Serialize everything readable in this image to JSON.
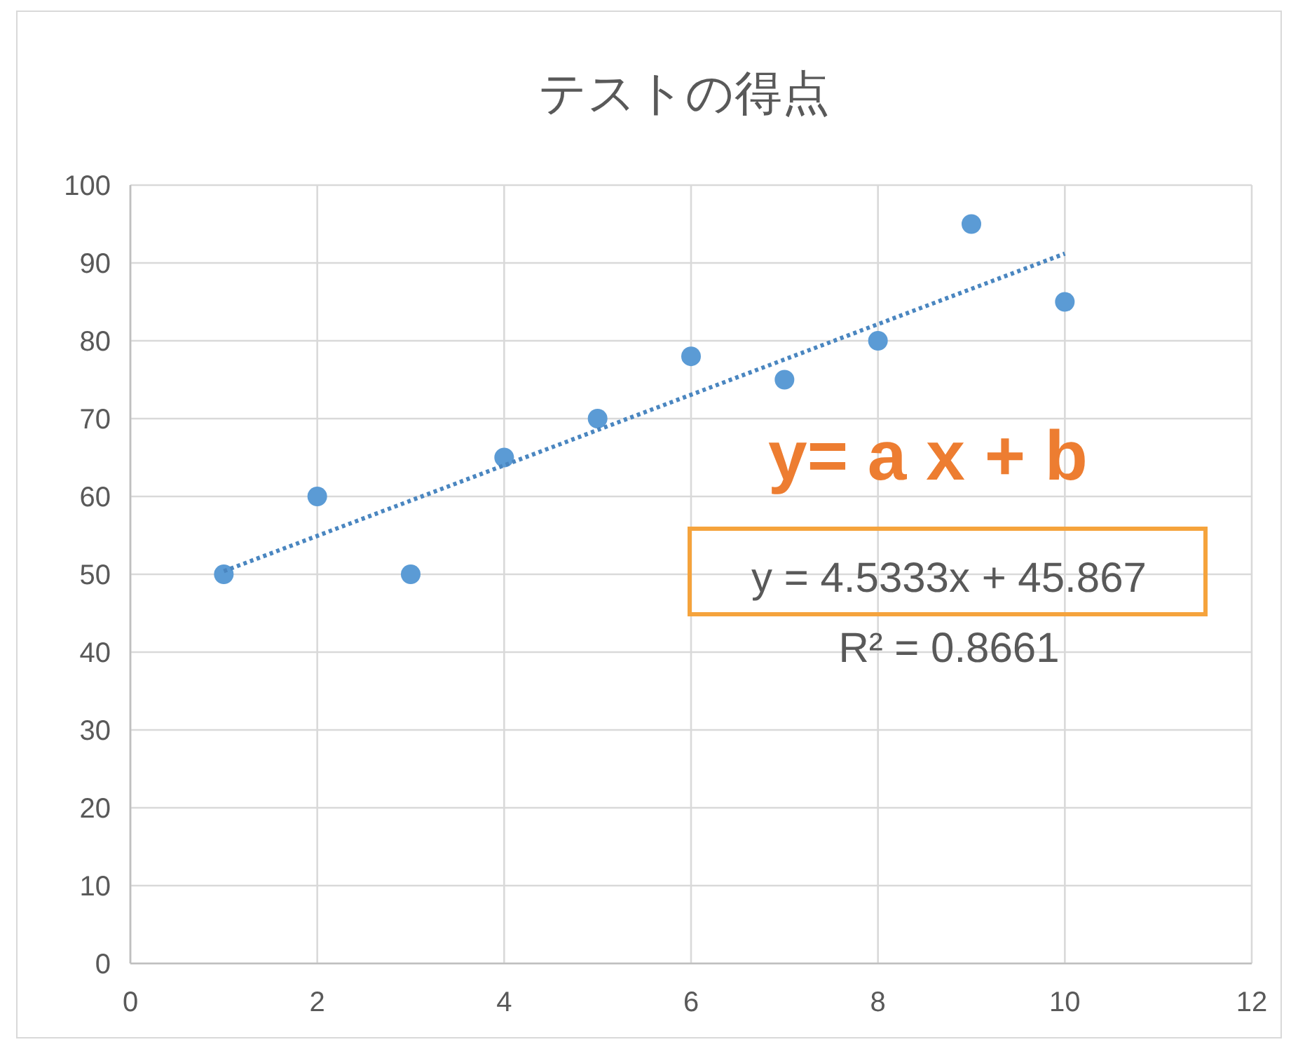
{
  "chart_data": {
    "type": "scatter",
    "title": "テストの得点",
    "series": [
      {
        "color": "#5b9bd5",
        "marker": "circle",
        "x": [
          1,
          2,
          3,
          4,
          5,
          6,
          7,
          8,
          9,
          10
        ],
        "values": [
          50,
          60,
          50,
          65,
          70,
          78,
          75,
          80,
          95,
          85
        ]
      },
      {
        "type": "line",
        "color": "#4a86c0",
        "marker": "none",
        "line_style": "dotted",
        "x": [
          1,
          10
        ],
        "values": [
          50.4,
          91.2
        ]
      }
    ],
    "xlim": [
      0,
      12
    ],
    "ylim": [
      0,
      100
    ],
    "xticks": [
      0,
      2,
      4,
      6,
      8,
      10,
      12
    ],
    "yticks": [
      0,
      10,
      20,
      30,
      40,
      50,
      60,
      70,
      80,
      90,
      100
    ],
    "grid": true,
    "annotations": [
      "y= a x + b",
      "y = 4.5333x + 45.867",
      "R² = 0.8661"
    ]
  }
}
